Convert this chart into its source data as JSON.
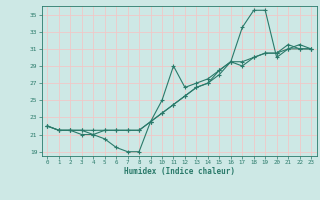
{
  "title": "",
  "xlabel": "Humidex (Indice chaleur)",
  "bg_color": "#cde8e5",
  "grid_color": "#f0c8c8",
  "line_color": "#2a7a6a",
  "xlim": [
    -0.5,
    23.5
  ],
  "ylim": [
    18.5,
    36.0
  ],
  "xticks": [
    0,
    1,
    2,
    3,
    4,
    5,
    6,
    7,
    8,
    9,
    10,
    11,
    12,
    13,
    14,
    15,
    16,
    17,
    18,
    19,
    20,
    21,
    22,
    23
  ],
  "yticks": [
    19,
    21,
    23,
    25,
    27,
    29,
    31,
    33,
    35
  ],
  "series1_x": [
    0,
    1,
    2,
    3,
    4,
    5,
    6,
    7,
    8,
    9,
    10,
    11,
    12,
    13,
    14,
    15,
    16,
    17,
    18,
    19,
    20,
    21,
    22,
    23
  ],
  "series1_y": [
    22.0,
    21.5,
    21.5,
    21.0,
    21.0,
    20.5,
    19.5,
    19.0,
    19.0,
    22.5,
    25.0,
    29.0,
    26.5,
    27.0,
    27.5,
    28.5,
    29.5,
    33.5,
    35.5,
    35.5,
    30.0,
    31.0,
    31.0,
    31.0
  ],
  "series2_x": [
    0,
    1,
    2,
    3,
    4,
    5,
    6,
    7,
    8,
    9,
    10,
    11,
    12,
    13,
    14,
    15,
    16,
    17,
    18,
    19,
    20,
    21,
    22,
    23
  ],
  "series2_y": [
    22.0,
    21.5,
    21.5,
    21.5,
    21.0,
    21.5,
    21.5,
    21.5,
    21.5,
    22.5,
    23.5,
    24.5,
    25.5,
    26.5,
    27.0,
    28.0,
    29.5,
    29.0,
    30.0,
    30.5,
    30.5,
    31.5,
    31.0,
    31.0
  ],
  "series3_x": [
    0,
    1,
    2,
    3,
    4,
    5,
    6,
    7,
    8,
    9,
    10,
    11,
    12,
    13,
    14,
    15,
    16,
    17,
    18,
    19,
    20,
    21,
    22,
    23
  ],
  "series3_y": [
    22.0,
    21.5,
    21.5,
    21.5,
    21.5,
    21.5,
    21.5,
    21.5,
    21.5,
    22.5,
    23.5,
    24.5,
    25.5,
    26.5,
    27.0,
    28.5,
    29.5,
    29.5,
    30.0,
    30.5,
    30.5,
    31.0,
    31.5,
    31.0
  ]
}
